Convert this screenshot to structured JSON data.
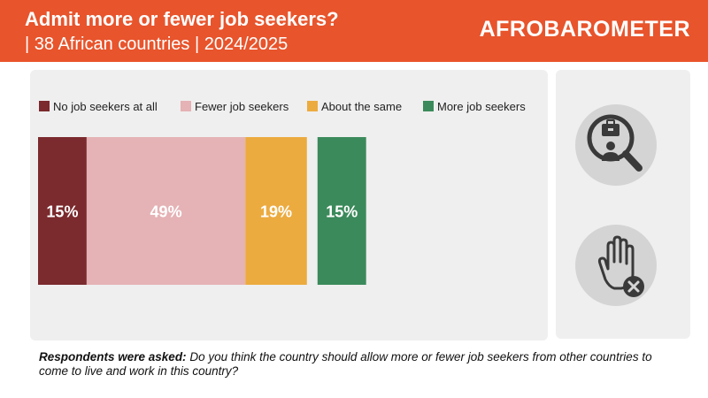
{
  "header": {
    "title": "Admit more or fewer job seekers?",
    "subtitle": "| 38 African countries | 2024/2025",
    "brand": "AFROBAROMETER"
  },
  "colors": {
    "header_bg": "#e8542c",
    "no_job_seekers": "#7b2a2d",
    "fewer": "#e5b2b5",
    "same": "#ecab3f",
    "more": "#3b8a5b"
  },
  "icons": [
    "job-search-icon",
    "stop-hand-icon"
  ],
  "footnote": {
    "lead": "Respondents were asked:",
    "text": "Do you think the country should allow more or fewer job seekers from other countries to come to live and work in this country?"
  },
  "chart_data": {
    "type": "bar",
    "orientation": "horizontal-stacked",
    "categories": [
      "No job seekers at all",
      "Fewer job seekers",
      "About the same",
      "More job seekers"
    ],
    "values": [
      15,
      49,
      19,
      15
    ],
    "labels": [
      "15%",
      "49%",
      "19%",
      "15%"
    ],
    "unit": "%",
    "legend": "top"
  }
}
